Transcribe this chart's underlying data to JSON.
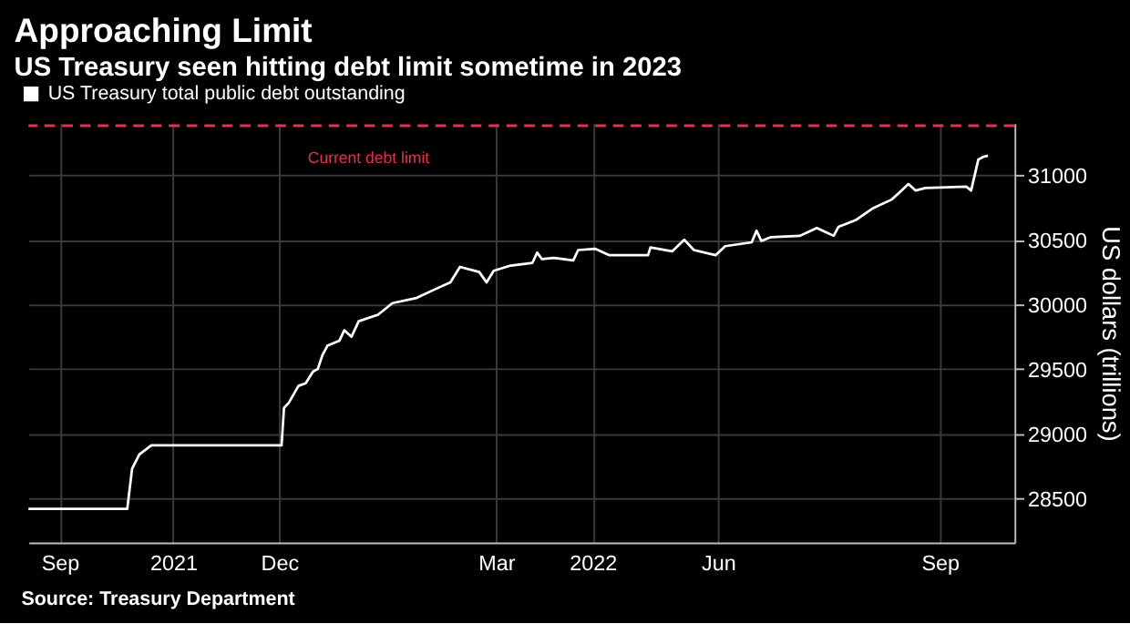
{
  "chart_data": {
    "type": "line",
    "title": "Approaching Limit",
    "subtitle": "US Treasury seen hitting debt limit sometime in 2023",
    "ylabel": "US dollars (trillions)",
    "annotations": [
      "Source: Treasury Department"
    ],
    "series": [
      {
        "name": "US Treasury total public debt outstanding",
        "color": "#ffffff",
        "x": [
          "2021-09-02",
          "2021-10-13",
          "2021-10-15",
          "2021-10-18",
          "2021-10-23",
          "2021-12-16",
          "2021-12-17",
          "2021-12-19",
          "2021-12-23",
          "2021-12-26",
          "2021-12-29",
          "2021-12-31",
          "2022-01-02",
          "2022-01-04",
          "2022-01-09",
          "2022-01-11",
          "2022-01-14",
          "2022-01-17",
          "2022-01-25",
          "2022-01-31",
          "2022-02-10",
          "2022-02-18",
          "2022-02-24",
          "2022-02-28",
          "2022-03-08",
          "2022-03-11",
          "2022-03-14",
          "2022-03-21",
          "2022-03-30",
          "2022-04-01",
          "2022-04-03",
          "2022-04-08",
          "2022-04-16",
          "2022-04-18",
          "2022-04-25",
          "2022-05-01",
          "2022-05-17",
          "2022-05-18",
          "2022-05-27",
          "2022-06-01",
          "2022-06-05",
          "2022-06-14",
          "2022-06-18",
          "2022-06-29",
          "2022-07-01",
          "2022-07-03",
          "2022-07-07",
          "2022-07-19",
          "2022-07-26",
          "2022-08-02",
          "2022-08-04",
          "2022-08-11",
          "2022-08-18",
          "2022-08-26",
          "2022-08-29",
          "2022-09-02",
          "2022-09-05",
          "2022-09-09",
          "2022-09-26",
          "2022-09-28",
          "2022-10-01",
          "2022-10-03",
          "2022-10-05"
        ],
        "values": [
          28420,
          28420,
          28730,
          28840,
          28910,
          28910,
          29200,
          29240,
          29370,
          29390,
          29480,
          29500,
          29610,
          29680,
          29720,
          29800,
          29750,
          29870,
          29920,
          30010,
          30050,
          30120,
          30170,
          30290,
          30250,
          30170,
          30260,
          30300,
          30320,
          30400,
          30350,
          30360,
          30340,
          30420,
          30430,
          30380,
          30380,
          30440,
          30410,
          30500,
          30420,
          30380,
          30450,
          30480,
          30570,
          30490,
          30520,
          30530,
          30590,
          30530,
          30600,
          30650,
          30740,
          30810,
          30860,
          30930,
          30880,
          30900,
          30910,
          30880,
          31120,
          31140,
          31150
        ]
      }
    ],
    "xlim": [
      "2021-09-02",
      "2022-10-16"
    ],
    "xticks": [
      {
        "value": "2021-09-15",
        "label": "Sep"
      },
      {
        "value": "2021-11-01",
        "label": "2021"
      },
      {
        "value": "2021-12-15",
        "label": "Dec"
      },
      {
        "value": "2022-03-15",
        "label": "Mar"
      },
      {
        "value": "2022-04-24",
        "label": "2022"
      },
      {
        "value": "2022-06-15",
        "label": "Jun"
      },
      {
        "value": "2022-09-15",
        "label": "Sep"
      }
    ],
    "ylim": [
      28160,
      31400
    ],
    "yticks": [
      28500,
      29000,
      29500,
      30000,
      30500,
      31000
    ],
    "ref_lines": [
      {
        "axis": "y",
        "value": 31381,
        "label": "Current debt limit",
        "color": "#e0334c",
        "line_style": "dashed"
      }
    ],
    "grid": true,
    "legend": "top left",
    "marker": "none",
    "line_style": "solid"
  }
}
